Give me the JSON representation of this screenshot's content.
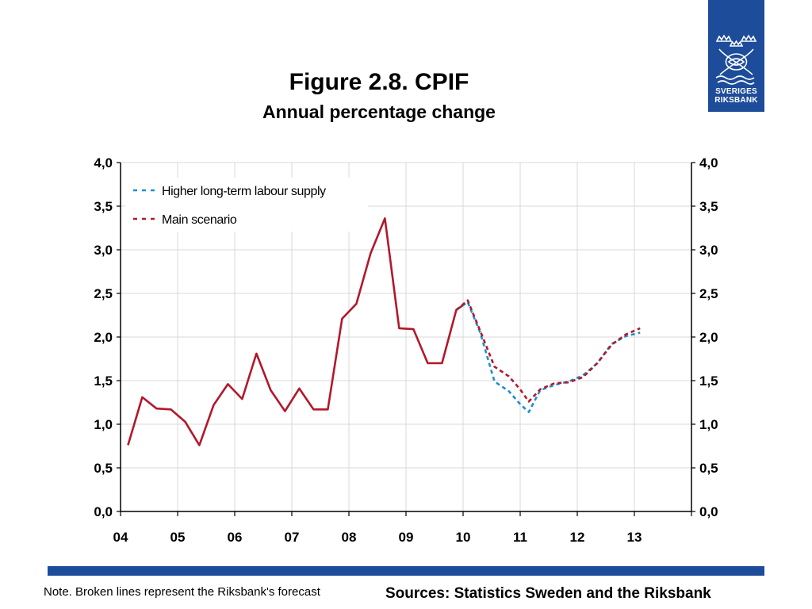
{
  "header": {
    "title": "Figure 2.8. CPIF",
    "subtitle": "Annual percentage change"
  },
  "logo": {
    "icon": "riksbank-crest-icon",
    "line1": "SVERIGES",
    "line2": "RIKSBANK",
    "background": "#1d4c9a"
  },
  "chart_data": {
    "type": "line",
    "xlim": [
      2004.0,
      2014.0
    ],
    "ylim": [
      0.0,
      4.0
    ],
    "y_ticks": [
      "0,0",
      "0,5",
      "1,0",
      "1,5",
      "2,0",
      "2,5",
      "3,0",
      "3,5",
      "4,0"
    ],
    "x_tick_labels": [
      "04",
      "05",
      "06",
      "07",
      "08",
      "09",
      "10",
      "11",
      "12",
      "13"
    ],
    "x_tick_values": [
      2004,
      2005,
      2006,
      2007,
      2008,
      2009,
      2010,
      2011,
      2012,
      2013
    ],
    "grid": true,
    "right_axis": true,
    "legend_position": "top-left",
    "series": [
      {
        "name": "",
        "style": "solid",
        "color": "#b2182b",
        "points": [
          [
            2004.13,
            0.76
          ],
          [
            2004.38,
            1.31
          ],
          [
            2004.63,
            1.18
          ],
          [
            2004.88,
            1.17
          ],
          [
            2005.13,
            1.03
          ],
          [
            2005.38,
            0.76
          ],
          [
            2005.63,
            1.22
          ],
          [
            2005.88,
            1.46
          ],
          [
            2006.13,
            1.29
          ],
          [
            2006.38,
            1.81
          ],
          [
            2006.63,
            1.39
          ],
          [
            2006.88,
            1.15
          ],
          [
            2007.13,
            1.41
          ],
          [
            2007.38,
            1.17
          ],
          [
            2007.63,
            1.17
          ],
          [
            2007.88,
            2.21
          ],
          [
            2008.13,
            2.38
          ],
          [
            2008.38,
            2.96
          ],
          [
            2008.63,
            3.36
          ],
          [
            2008.88,
            2.1
          ],
          [
            2009.13,
            2.09
          ],
          [
            2009.38,
            1.7
          ],
          [
            2009.63,
            1.7
          ],
          [
            2009.88,
            2.31
          ],
          [
            2010.03,
            2.38
          ]
        ]
      },
      {
        "name": "Higher long-term labour supply",
        "style": "dashed",
        "color": "#1f8fd0",
        "points": [
          [
            2009.88,
            2.31
          ],
          [
            2010.08,
            2.4
          ],
          [
            2010.3,
            2.05
          ],
          [
            2010.55,
            1.49
          ],
          [
            2010.8,
            1.38
          ],
          [
            2011.0,
            1.23
          ],
          [
            2011.15,
            1.14
          ],
          [
            2011.35,
            1.39
          ],
          [
            2011.6,
            1.45
          ],
          [
            2011.85,
            1.49
          ],
          [
            2012.1,
            1.56
          ],
          [
            2012.35,
            1.7
          ],
          [
            2012.6,
            1.92
          ],
          [
            2012.85,
            2.01
          ],
          [
            2013.1,
            2.05
          ]
        ]
      },
      {
        "name": "Main scenario",
        "style": "dashed",
        "color": "#b2182b",
        "points": [
          [
            2009.88,
            2.31
          ],
          [
            2010.08,
            2.42
          ],
          [
            2010.3,
            2.07
          ],
          [
            2010.55,
            1.66
          ],
          [
            2010.8,
            1.55
          ],
          [
            2011.0,
            1.4
          ],
          [
            2011.15,
            1.26
          ],
          [
            2011.35,
            1.4
          ],
          [
            2011.6,
            1.47
          ],
          [
            2011.85,
            1.48
          ],
          [
            2012.1,
            1.54
          ],
          [
            2012.35,
            1.7
          ],
          [
            2012.6,
            1.91
          ],
          [
            2012.85,
            2.03
          ],
          [
            2013.1,
            2.1
          ]
        ]
      }
    ]
  },
  "footer": {
    "note": "Note. Broken lines represent the Riksbank's forecast",
    "sources": "Sources: Statistics Sweden and the Riksbank",
    "bar_color": "#1d4c9a"
  }
}
